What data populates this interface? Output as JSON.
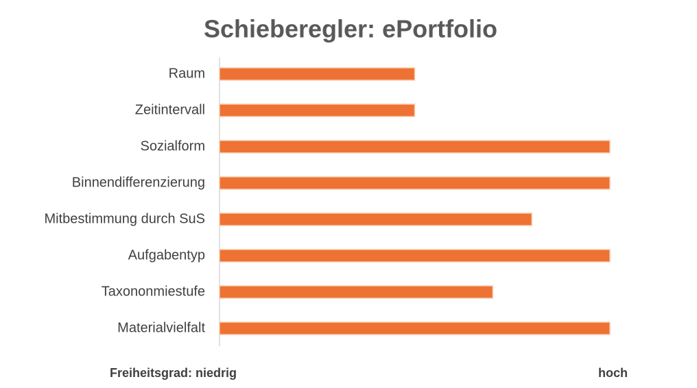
{
  "chart_data": {
    "type": "bar",
    "orientation": "horizontal",
    "title": "Schieberegler: ePortfolio",
    "categories": [
      "Raum",
      "Zeitintervall",
      "Sozialform",
      "Binnendifferenzierung",
      "Mitbestimmung durch SuS",
      "Aufgabentyp",
      "Taxononmiestufe",
      "Materialvielfalt"
    ],
    "values": [
      5,
      5,
      10,
      10,
      8,
      10,
      7,
      10
    ],
    "color": "#ed7233",
    "xlim": [
      0,
      10
    ],
    "annotations": [
      "Freiheitsgrad: niedrig",
      "hoch"
    ]
  }
}
